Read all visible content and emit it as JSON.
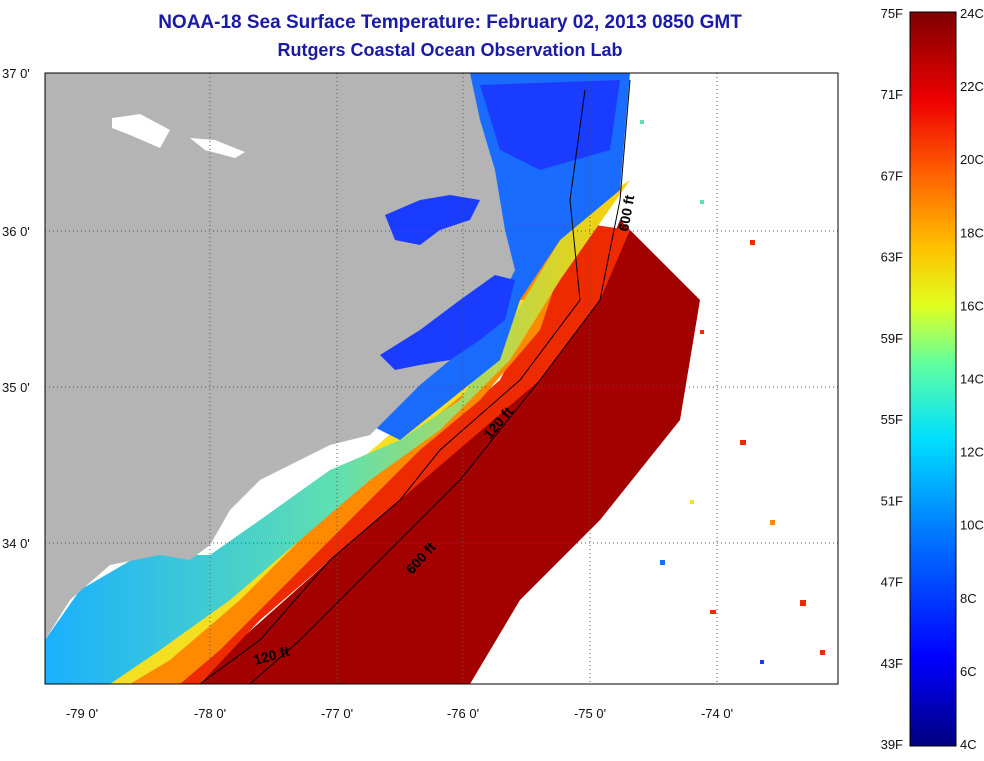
{
  "title": {
    "line1": "NOAA-18 Sea Surface Temperature:  February 02, 2013 0850 GMT",
    "line2": "Rutgers Coastal Ocean Observation Lab"
  },
  "map": {
    "lon_ticks": [
      "-79 0'",
      "-78 0'",
      "-77 0'",
      "-76 0'",
      "-75 0'",
      "-74 0'"
    ],
    "lat_ticks": [
      "37 0'",
      "36 0'",
      "35 0'",
      "34 0'"
    ],
    "contour_labels": [
      "600 ft",
      "120 ft",
      "600 ft",
      "120 ft"
    ]
  },
  "colorbar": {
    "fahrenheit": [
      "75F",
      "71F",
      "67F",
      "63F",
      "59F",
      "55F",
      "51F",
      "47F",
      "43F",
      "39F"
    ],
    "celsius": [
      "24C",
      "22C",
      "20C",
      "18C",
      "16C",
      "14C",
      "12C",
      "10C",
      "8C",
      "6C",
      "4C"
    ]
  },
  "colors": {
    "title": "#1a1aa6",
    "land": "#b4b4b4",
    "no_data": "#ffffff"
  }
}
